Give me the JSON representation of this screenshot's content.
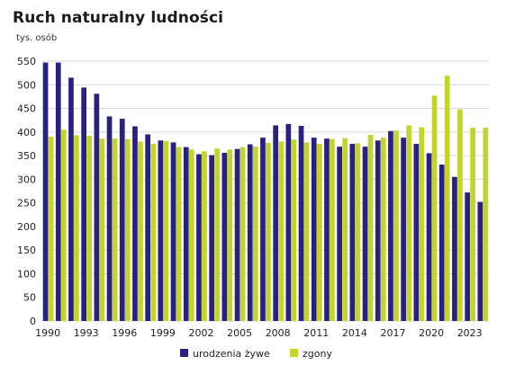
{
  "chart_data": {
    "type": "bar",
    "title": "Ruch naturalny ludności",
    "ylabel": "tys. osób",
    "xlabel": "",
    "ylim": [
      0,
      550
    ],
    "yticks": [
      0,
      50,
      100,
      150,
      200,
      250,
      300,
      350,
      400,
      450,
      500,
      550
    ],
    "xtick_labels": [
      "1990",
      "1993",
      "1996",
      "1999",
      "2002",
      "2005",
      "2008",
      "2011",
      "2014",
      "2017",
      "2020",
      "2023"
    ],
    "categories": [
      "1990",
      "1991",
      "1992",
      "1993",
      "1994",
      "1995",
      "1996",
      "1997",
      "1998",
      "1999",
      "2000",
      "2001",
      "2002",
      "2003",
      "2004",
      "2005",
      "2006",
      "2007",
      "2008",
      "2009",
      "2010",
      "2011",
      "2012",
      "2013",
      "2014",
      "2015",
      "2016",
      "2017",
      "2018",
      "2019",
      "2020",
      "2021",
      "2022",
      "2023",
      "2024"
    ],
    "series": [
      {
        "name": "urodzenia żywe",
        "color": "#29217f",
        "values": [
          547,
          547,
          515,
          494,
          481,
          433,
          428,
          412,
          395,
          382,
          378,
          368,
          353,
          351,
          356,
          364,
          374,
          388,
          414,
          417,
          413,
          388,
          386,
          369,
          375,
          369,
          382,
          402,
          388,
          375,
          355,
          331,
          305,
          272,
          252
        ]
      },
      {
        "name": "zgony",
        "color": "#c3d52a",
        "values": [
          390,
          405,
          393,
          392,
          386,
          386,
          385,
          380,
          375,
          381,
          368,
          363,
          359,
          365,
          363,
          368,
          369,
          377,
          380,
          384,
          378,
          375,
          385,
          387,
          376,
          394,
          388,
          403,
          414,
          410,
          477,
          519,
          448,
          409,
          409
        ]
      }
    ],
    "grid": true,
    "legend_position": "bottom-center"
  }
}
